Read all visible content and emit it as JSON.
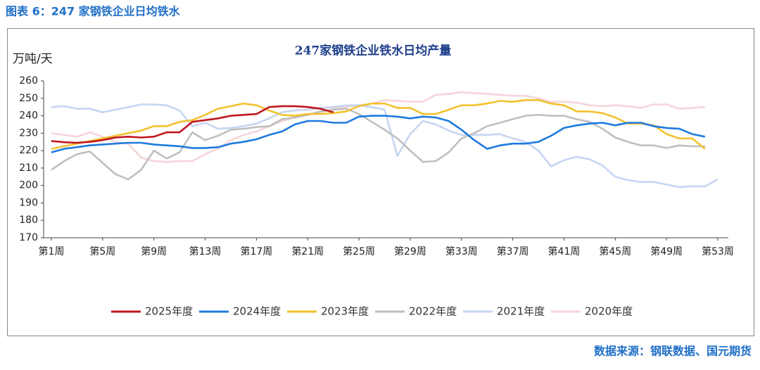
{
  "header": {
    "title": "图表 6：247 家钢铁企业日均铁水"
  },
  "source": "数据来源：钢联数据、国元期货",
  "chart_data": {
    "type": "line",
    "title": "247家钢铁企业铁水日均产量",
    "y_label": "万吨/天",
    "categories": [
      "第1周",
      null,
      null,
      null,
      "第5周",
      null,
      null,
      null,
      "第9周",
      null,
      null,
      null,
      "第13周",
      null,
      null,
      null,
      "第17周",
      null,
      null,
      null,
      "第21周",
      null,
      null,
      null,
      "第25周",
      null,
      null,
      null,
      "第29周",
      null,
      null,
      null,
      "第33周",
      null,
      null,
      null,
      "第37周",
      null,
      null,
      null,
      "第41周",
      null,
      null,
      null,
      "第45周",
      null,
      null,
      null,
      "第49周",
      null,
      null,
      null,
      "第53周"
    ],
    "ylim": [
      170,
      260
    ],
    "yticks": [
      170,
      180,
      190,
      200,
      210,
      220,
      230,
      240,
      250,
      260
    ],
    "grid": false,
    "legend": "bottom",
    "series": [
      {
        "name": "2025年度",
        "color": "#c0161e",
        "values": [
          225.5,
          224.8,
          224.5,
          225,
          226,
          227.5,
          228,
          227.5,
          228,
          230.5,
          230.5,
          236.5,
          237.5,
          238.5,
          240,
          240.5,
          241,
          245,
          245.5,
          245.5,
          245,
          244,
          242,
          null,
          null,
          null,
          null,
          null,
          null,
          null,
          null,
          null,
          null,
          null,
          null,
          null,
          null,
          null,
          null,
          null,
          null,
          null,
          null,
          null,
          null,
          null,
          null,
          null,
          null,
          null,
          null,
          null,
          null
        ]
      },
      {
        "name": "2024年度",
        "color": "#1f7ae0",
        "values": [
          219,
          221,
          222,
          223,
          223.5,
          224,
          224.5,
          224.5,
          223.5,
          223,
          222.5,
          221.5,
          221.5,
          222,
          224,
          225,
          226.5,
          229,
          231,
          235,
          237,
          237,
          236,
          236,
          239.5,
          240,
          240,
          239.5,
          238.5,
          239.5,
          239,
          237,
          232,
          226,
          221,
          223,
          224,
          224,
          225,
          228.5,
          233,
          234.5,
          235.5,
          236,
          234.5,
          236,
          236,
          234,
          233,
          232.5,
          229.5,
          228,
          null
        ]
      },
      {
        "name": "2023年度",
        "color": "#f2c12e",
        "values": [
          221,
          222.5,
          224,
          225.5,
          227,
          228.5,
          230,
          231.5,
          234,
          234,
          236.5,
          237.5,
          240.5,
          244,
          245.5,
          247,
          246,
          243,
          240.5,
          240,
          241,
          241,
          241.5,
          242.5,
          245.5,
          247,
          247,
          244.5,
          244.5,
          241,
          241,
          243.5,
          246,
          246,
          247,
          248.5,
          248,
          249,
          249,
          247,
          246,
          242.5,
          242.5,
          241.5,
          239,
          235.5,
          235.5,
          234.5,
          229.5,
          227,
          227,
          221,
          null
        ]
      },
      {
        "name": "2022年度",
        "color": "#bfbfbf",
        "values": [
          209,
          214,
          218,
          219.5,
          213,
          206.5,
          203.5,
          209,
          220,
          215.5,
          219,
          230.5,
          226,
          228.5,
          232,
          232.5,
          233.5,
          234,
          238,
          239,
          240.5,
          242.5,
          243.5,
          244,
          241,
          236.5,
          232,
          227,
          220,
          213.5,
          214,
          219,
          227,
          230,
          234,
          236,
          238,
          240,
          240.5,
          240,
          240,
          238,
          236.5,
          232.5,
          227.5,
          225,
          223,
          223,
          221.5,
          223,
          222.5,
          222.5,
          null
        ]
      },
      {
        "name": "2021年度",
        "color": "#c5d5f2",
        "values": [
          245,
          245.5,
          244,
          244,
          242,
          243.5,
          245,
          246.5,
          246.5,
          246,
          243,
          234,
          236,
          232.5,
          233,
          234,
          235.5,
          238.5,
          242,
          243,
          243.5,
          244.5,
          245,
          246,
          246,
          245,
          243.5,
          217,
          229.5,
          237,
          235,
          231.5,
          229,
          229,
          229,
          229.5,
          227,
          225,
          220,
          211,
          214.5,
          216.5,
          215,
          211.5,
          205,
          203,
          202,
          202,
          200.5,
          199,
          199.5,
          199.5,
          203.5
        ]
      },
      {
        "name": "2020年度",
        "color": "#f5d5d8",
        "values": [
          230,
          229,
          228,
          230.5,
          228,
          225,
          224,
          216,
          214,
          213.5,
          214,
          214,
          218,
          221,
          226,
          229,
          231,
          234,
          237,
          239,
          240.5,
          242,
          244,
          245,
          246,
          247,
          249,
          248.5,
          248,
          248,
          252,
          252.5,
          253.5,
          253,
          252.5,
          252,
          251.5,
          251.5,
          250,
          248,
          248,
          247.5,
          246,
          245.5,
          246,
          245.5,
          244.5,
          246.5,
          246.5,
          244,
          244.5,
          245,
          null
        ]
      }
    ]
  }
}
